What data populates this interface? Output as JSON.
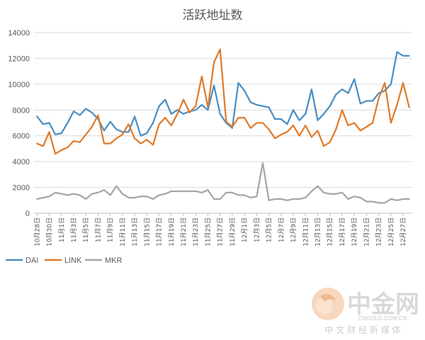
{
  "chart_data": {
    "type": "line",
    "title": "活跃地址数",
    "ylim": [
      0,
      14000
    ],
    "yticks": [
      0,
      2000,
      4000,
      6000,
      8000,
      10000,
      12000,
      14000
    ],
    "grid": "horizontal",
    "legend_position": "bottom-left",
    "categories": [
      "10月28日",
      "10月29日",
      "10月30日",
      "10月31日",
      "11月1日",
      "11月2日",
      "11月3日",
      "11月4日",
      "11月5日",
      "11月6日",
      "11月7日",
      "11月8日",
      "11月9日",
      "11月10日",
      "11月11日",
      "11月12日",
      "11月13日",
      "11月14日",
      "11月15日",
      "11月16日",
      "11月17日",
      "11月18日",
      "11月19日",
      "11月20日",
      "11月21日",
      "11月22日",
      "11月23日",
      "11月24日",
      "11月25日",
      "11月26日",
      "11月27日",
      "11月28日",
      "11月29日",
      "11月30日",
      "12月1日",
      "12月2日",
      "12月3日",
      "12月4日",
      "12月5日",
      "12月6日",
      "12月7日",
      "12月8日",
      "12月9日",
      "12月10日",
      "12月11日",
      "12月12日",
      "12月13日",
      "12月14日",
      "12月15日",
      "12月16日",
      "12月17日",
      "12月18日",
      "12月19日",
      "12月20日",
      "12月21日",
      "12月22日",
      "12月23日",
      "12月24日",
      "12月25日",
      "12月26日",
      "12月27日",
      "12月28日"
    ],
    "tick_labels": [
      "10月28日",
      "10月30日",
      "11月1日",
      "11月3日",
      "11月5日",
      "11月7日",
      "11月9日",
      "11月11日",
      "11月13日",
      "11月15日",
      "11月17日",
      "11月19日",
      "11月21日",
      "11月23日",
      "11月25日",
      "11月27日",
      "11月29日",
      "12月1日",
      "12月3日",
      "12月5日",
      "12月7日",
      "12月9日",
      "12月11日",
      "12月13日",
      "12月15日",
      "12月17日",
      "12月19日",
      "12月21日",
      "12月23日",
      "12月25日",
      "12月27日"
    ],
    "series": [
      {
        "name": "DAI",
        "color": "#4a8fc4",
        "values": [
          7500,
          6900,
          7000,
          6100,
          6200,
          7000,
          7900,
          7600,
          8100,
          7800,
          7300,
          6400,
          7100,
          6500,
          6300,
          6300,
          7500,
          6000,
          6200,
          7000,
          8300,
          8800,
          7700,
          8000,
          7700,
          7900,
          8000,
          8400,
          8000,
          9900,
          7700,
          7000,
          6600,
          10100,
          9500,
          8600,
          8400,
          8300,
          8200,
          7300,
          7300,
          6900,
          8000,
          7200,
          7700,
          9600,
          7200,
          7700,
          8300,
          9200,
          9600,
          9300,
          10400,
          8500,
          8700,
          8700,
          9300,
          9500,
          10000,
          12500,
          12200,
          12200
        ]
      },
      {
        "name": "LINK",
        "color": "#e07b2a",
        "values": [
          5400,
          5200,
          6300,
          4600,
          4900,
          5100,
          5600,
          5500,
          6100,
          6700,
          7600,
          5400,
          5400,
          5800,
          6100,
          6900,
          5800,
          5400,
          5700,
          5300,
          6900,
          7400,
          6800,
          7700,
          8800,
          7800,
          8300,
          10600,
          8200,
          11700,
          12700,
          7100,
          6700,
          7400,
          7400,
          6600,
          7000,
          7000,
          6500,
          5800,
          6100,
          6300,
          6800,
          6000,
          6800,
          5900,
          6400,
          5200,
          5500,
          6500,
          8000,
          6800,
          7000,
          6400,
          6700,
          7000,
          8900,
          10100,
          7000,
          8400,
          10100,
          8200
        ]
      },
      {
        "name": "MKR",
        "color": "#a6a6a6",
        "values": [
          1100,
          1200,
          1300,
          1600,
          1500,
          1400,
          1500,
          1400,
          1100,
          1500,
          1600,
          1800,
          1400,
          2100,
          1500,
          1200,
          1200,
          1300,
          1300,
          1100,
          1400,
          1500,
          1700,
          1700,
          1700,
          1700,
          1700,
          1600,
          1800,
          1100,
          1100,
          1600,
          1600,
          1400,
          1400,
          1200,
          1300,
          3900,
          1000,
          1100,
          1100,
          1000,
          1100,
          1100,
          1200,
          1700,
          2100,
          1600,
          1500,
          1500,
          1600,
          1100,
          1300,
          1200,
          900,
          900,
          800,
          800,
          1100,
          1000,
          1100,
          1100
        ]
      }
    ]
  },
  "watermark": {
    "brand": "中金网",
    "url": "CNGOLD.COM.CN",
    "tagline": "中 文 财 经 新 媒 体"
  }
}
